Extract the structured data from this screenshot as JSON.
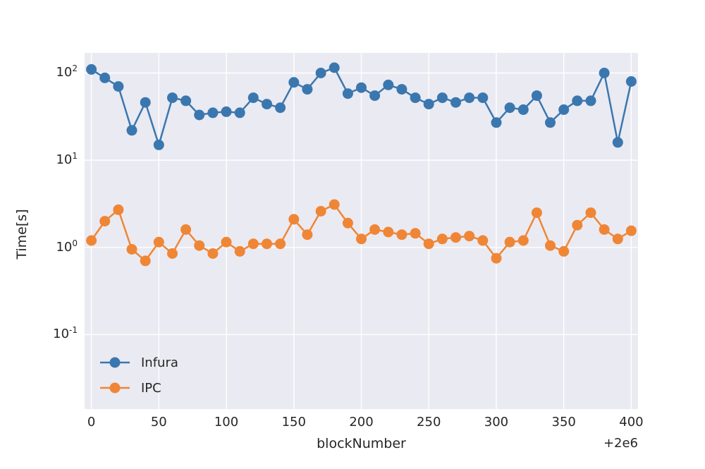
{
  "chart_data": {
    "type": "line",
    "title": "",
    "xlabel": "blockNumber",
    "ylabel": "Time[s]",
    "x_offset": "+2e6",
    "yscale": "log",
    "grid": true,
    "legend_position": "lower left",
    "plot_bg": "#eaeaf2",
    "grid_color": "#ffffff",
    "text_color": "#262626",
    "xlim": [
      -5,
      405
    ],
    "ylim": [
      0.014,
      170
    ],
    "xticks": [
      0,
      50,
      100,
      150,
      200,
      250,
      300,
      350,
      400
    ],
    "yticks": [
      {
        "value": 0.1,
        "exp": "-1"
      },
      {
        "value": 1,
        "exp": "0"
      },
      {
        "value": 10,
        "exp": "1"
      },
      {
        "value": 100,
        "exp": "2"
      }
    ],
    "x": [
      0,
      10,
      20,
      30,
      40,
      50,
      60,
      70,
      80,
      90,
      100,
      110,
      120,
      130,
      140,
      150,
      160,
      170,
      180,
      190,
      200,
      210,
      220,
      230,
      240,
      250,
      260,
      270,
      280,
      290,
      300,
      310,
      320,
      330,
      340,
      350,
      360,
      370,
      380,
      390,
      400
    ],
    "series": [
      {
        "name": "Infura",
        "color": "#3b77af",
        "values": [
          110,
          88,
          70,
          22,
          46,
          15,
          52,
          48,
          33,
          35,
          36,
          35,
          52,
          44,
          40,
          78,
          65,
          100,
          115,
          58,
          68,
          55,
          73,
          65,
          52,
          44,
          52,
          46,
          52,
          52,
          27,
          40,
          38,
          55,
          27,
          38,
          48,
          48,
          100,
          16,
          80
        ]
      },
      {
        "name": "IPC",
        "color": "#ef8636",
        "values": [
          1.2,
          2.0,
          2.7,
          0.95,
          0.7,
          1.15,
          0.85,
          1.6,
          1.05,
          0.85,
          1.15,
          0.9,
          1.1,
          1.1,
          1.1,
          2.1,
          1.4,
          2.6,
          3.1,
          1.9,
          1.25,
          1.6,
          1.5,
          1.4,
          1.45,
          1.1,
          1.25,
          1.3,
          1.35,
          1.2,
          0.75,
          1.15,
          1.2,
          2.5,
          1.05,
          0.9,
          1.8,
          2.5,
          1.6,
          1.25,
          1.55
        ]
      }
    ]
  }
}
